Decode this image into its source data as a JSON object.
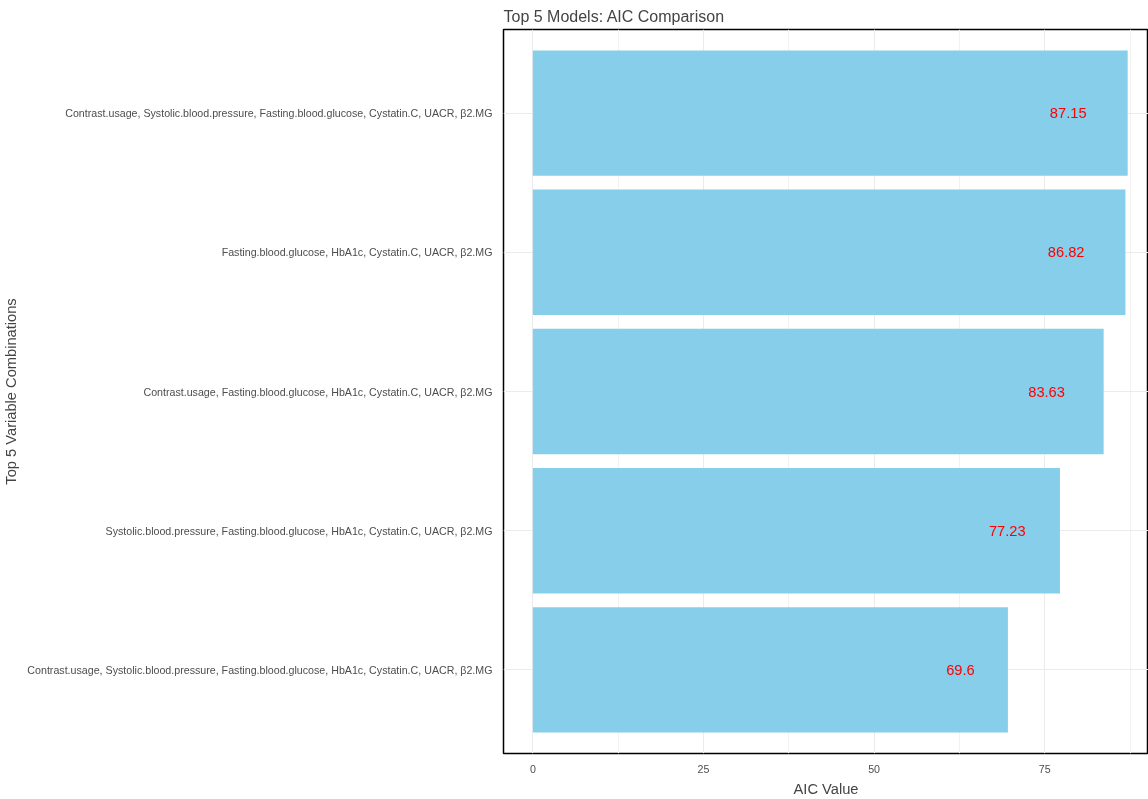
{
  "chart_data": {
    "type": "bar",
    "orientation": "horizontal",
    "title": "Top 5 Models: AIC Comparison",
    "xlabel": "AIC Value",
    "ylabel": "Top 5 Variable Combinations",
    "categories": [
      "Contrast.usage, Systolic.blood.pressure, Fasting.blood.glucose, Cystatin.C, UACR, β2.MG",
      "Fasting.blood.glucose, HbA1c, Cystatin.C, UACR, β2.MG",
      "Contrast.usage, Fasting.blood.glucose, HbA1c, Cystatin.C, UACR, β2.MG",
      "Systolic.blood.pressure, Fasting.blood.glucose, HbA1c, Cystatin.C, UACR, β2.MG",
      "Contrast.usage, Systolic.blood.pressure, Fasting.blood.glucose, HbA1c, Cystatin.C, UACR, β2.MG"
    ],
    "values": [
      87.15,
      86.82,
      83.63,
      77.23,
      69.6
    ],
    "value_labels": [
      "87.15",
      "86.82",
      "83.63",
      "77.23",
      "69.6"
    ],
    "color": "#87ceeb",
    "xlim": [
      -4.3,
      90.2
    ],
    "xticks": [
      0,
      25,
      50,
      75
    ],
    "grid": true
  }
}
